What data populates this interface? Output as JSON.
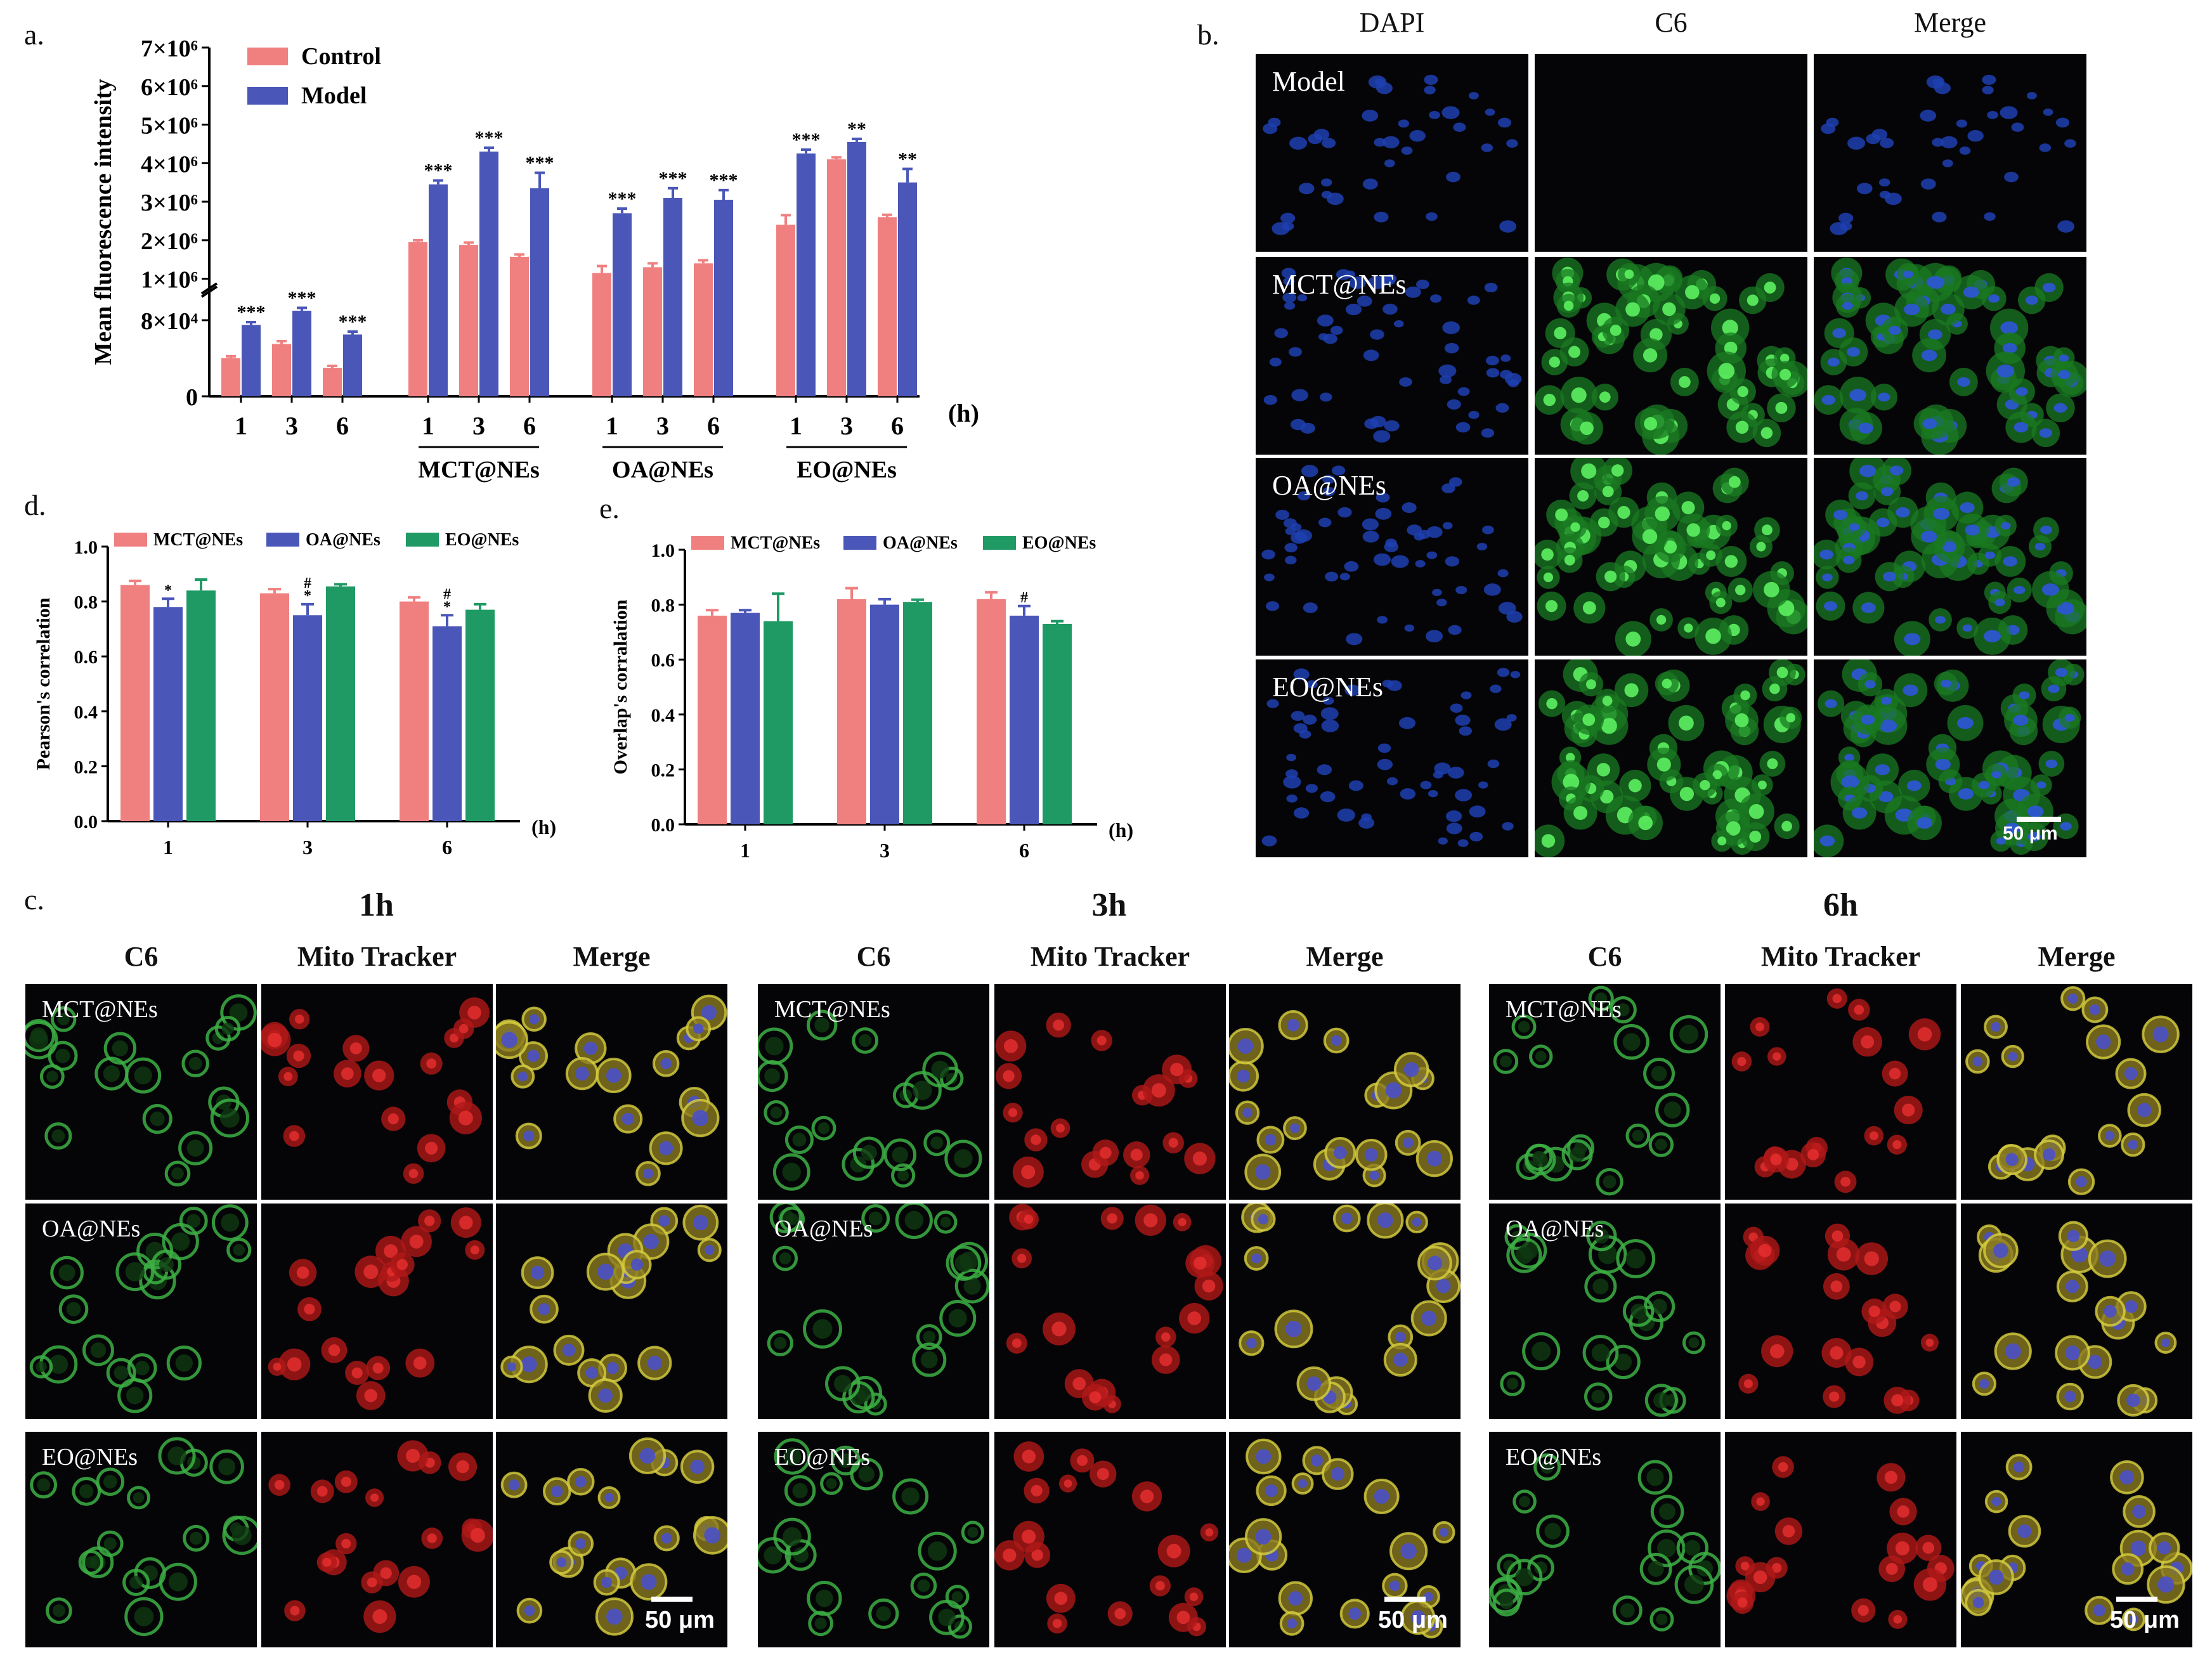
{
  "panel_labels": {
    "a": "a.",
    "b": "b.",
    "c": "c.",
    "d": "d.",
    "e": "e."
  },
  "chart_data": [
    {
      "id": "a",
      "type": "bar",
      "ylabel": "Mean fluorescence intensity",
      "xunit": "(h)",
      "groups": [
        "",
        "MCT@NEs",
        "OA@NEs",
        "EO@NEs"
      ],
      "categories": [
        "1",
        "3",
        "6",
        "1",
        "3",
        "6",
        "1",
        "3",
        "6",
        "1",
        "3",
        "6"
      ],
      "lower_ticks": [
        "0",
        "8×10⁴"
      ],
      "upper_ticks": [
        "1×10⁶",
        "2×10⁶",
        "3×10⁶",
        "4×10⁶",
        "5×10⁶",
        "6×10⁶",
        "7×10⁶"
      ],
      "axis_break": true,
      "series": [
        {
          "name": "Control",
          "color": "#f08080",
          "values": [
            40000,
            55000,
            30000,
            1950000,
            1880000,
            1570000,
            1150000,
            1300000,
            1400000,
            2400000,
            4100000,
            2600000
          ],
          "errors": [
            2000,
            3000,
            2000,
            50000,
            60000,
            60000,
            180000,
            100000,
            80000,
            250000,
            50000,
            60000
          ]
        },
        {
          "name": "Model",
          "color": "#4a57b8",
          "values": [
            75000,
            90000,
            65000,
            3450000,
            4300000,
            3350000,
            2700000,
            3100000,
            3050000,
            4250000,
            4550000,
            3500000
          ],
          "errors": [
            3000,
            3000,
            3000,
            100000,
            100000,
            400000,
            120000,
            250000,
            250000,
            100000,
            80000,
            350000
          ],
          "sig": [
            "***",
            "***",
            "***",
            "***",
            "***",
            "***",
            "***",
            "***",
            "***",
            "***",
            "**",
            "**"
          ]
        }
      ]
    },
    {
      "id": "d",
      "type": "bar",
      "ylabel": "Pearson's correlation",
      "xunit": "(h)",
      "categories": [
        "1",
        "3",
        "6"
      ],
      "yticks": [
        "0.0",
        "0.2",
        "0.4",
        "0.6",
        "0.8",
        "1.0"
      ],
      "ylim": [
        0,
        1.0
      ],
      "series": [
        {
          "name": "MCT@NEs",
          "color": "#f08080",
          "values": [
            0.86,
            0.83,
            0.8
          ],
          "errors": [
            0.015,
            0.015,
            0.015
          ],
          "sig": [
            "",
            "",
            ""
          ]
        },
        {
          "name": "OA@NEs",
          "color": "#4a57b8",
          "values": [
            0.78,
            0.75,
            0.71
          ],
          "errors": [
            0.03,
            0.04,
            0.04
          ],
          "sig": [
            "*",
            "#\n*",
            "#\n*"
          ]
        },
        {
          "name": "EO@NEs",
          "color": "#1f9a64",
          "values": [
            0.84,
            0.855,
            0.77
          ],
          "errors": [
            0.04,
            0.008,
            0.02
          ],
          "sig": [
            "",
            "",
            ""
          ]
        }
      ]
    },
    {
      "id": "e",
      "type": "bar",
      "ylabel": "Overlap's corralation",
      "xunit": "(h)",
      "categories": [
        "1",
        "3",
        "6"
      ],
      "yticks": [
        "0.0",
        "0.2",
        "0.4",
        "0.6",
        "0.8",
        "1.0"
      ],
      "ylim": [
        0,
        1.0
      ],
      "series": [
        {
          "name": "MCT@NEs",
          "color": "#f08080",
          "values": [
            0.76,
            0.82,
            0.82
          ],
          "errors": [
            0.02,
            0.04,
            0.025
          ],
          "sig": [
            "",
            "",
            ""
          ]
        },
        {
          "name": "OA@NEs",
          "color": "#4a57b8",
          "values": [
            0.77,
            0.8,
            0.76
          ],
          "errors": [
            0.01,
            0.02,
            0.035
          ],
          "sig": [
            "",
            "",
            "#"
          ]
        },
        {
          "name": "EO@NEs",
          "color": "#1f9a64",
          "values": [
            0.74,
            0.81,
            0.73
          ],
          "errors": [
            0.1,
            0.008,
            0.01
          ],
          "sig": [
            "",
            "",
            ""
          ]
        }
      ]
    }
  ],
  "panel_b": {
    "columns": [
      "DAPI",
      "C6",
      "Merge"
    ],
    "rows": [
      "Model",
      "MCT@NEs",
      "OA@NEs",
      "EO@NEs"
    ],
    "scale": "50 μm"
  },
  "panel_c": {
    "timepoints": [
      "1h",
      "3h",
      "6h"
    ],
    "columns": [
      "C6",
      "Mito Tracker",
      "Merge"
    ],
    "rows": [
      "MCT@NEs",
      "OA@NEs",
      "EO@NEs"
    ],
    "scale": "50 μm"
  }
}
